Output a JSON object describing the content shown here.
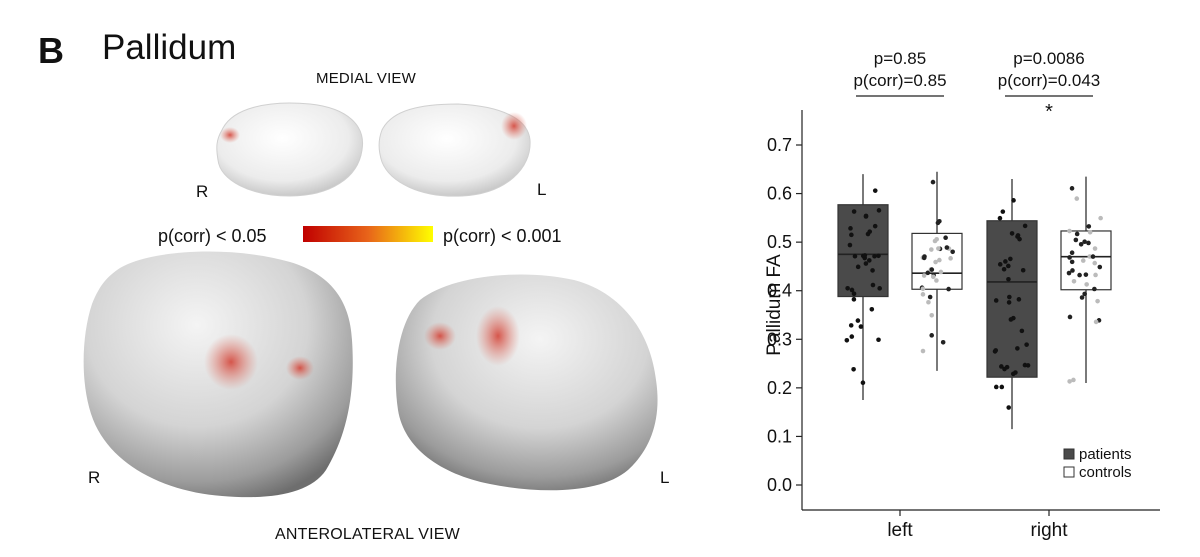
{
  "panel": {
    "letter": "B",
    "title": "Pallidum"
  },
  "brain": {
    "medial_view_label": "MEDIAL VIEW",
    "anterolateral_view_label": "ANTEROLATERAL VIEW",
    "medial_left_side": "R",
    "medial_right_side": "L",
    "antero_left_side": "R",
    "antero_right_side": "L",
    "colorbar": {
      "low_label": "p(corr) < 0.05",
      "high_label": "p(corr) < 0.001",
      "gradient": [
        "#c00000",
        "#e8641a",
        "#ffff00"
      ]
    }
  },
  "chart_data": {
    "type": "box",
    "ylabel": "Pallidum FA",
    "ylim": [
      0.0,
      0.75
    ],
    "yticks": [
      "0.0",
      "0.1",
      "0.2",
      "0.3",
      "0.4",
      "0.5",
      "0.6",
      "0.7"
    ],
    "categories": [
      "left",
      "right"
    ],
    "legend": {
      "position": "bottom-right",
      "entries": [
        "patients",
        "controls"
      ]
    },
    "colors": {
      "patients": "#4a4a4a",
      "controls": "#ffffff"
    },
    "series": [
      {
        "name": "patients",
        "boxes": [
          {
            "category": "left",
            "min": 0.175,
            "q1": 0.388,
            "median": 0.475,
            "q3": 0.577,
            "max": 0.64
          },
          {
            "category": "right",
            "min": 0.115,
            "q1": 0.222,
            "median": 0.418,
            "q3": 0.544,
            "max": 0.63
          }
        ]
      },
      {
        "name": "controls",
        "boxes": [
          {
            "category": "left",
            "min": 0.235,
            "q1": 0.403,
            "median": 0.436,
            "q3": 0.518,
            "max": 0.645
          },
          {
            "category": "right",
            "min": 0.21,
            "q1": 0.402,
            "median": 0.47,
            "q3": 0.523,
            "max": 0.635
          }
        ]
      }
    ],
    "annotations": [
      {
        "category": "left",
        "p": "p=0.85",
        "pcorr": "p(corr)=0.85",
        "star": ""
      },
      {
        "category": "right",
        "p": "p=0.0086",
        "pcorr": "p(corr)=0.043",
        "star": "*"
      }
    ]
  }
}
